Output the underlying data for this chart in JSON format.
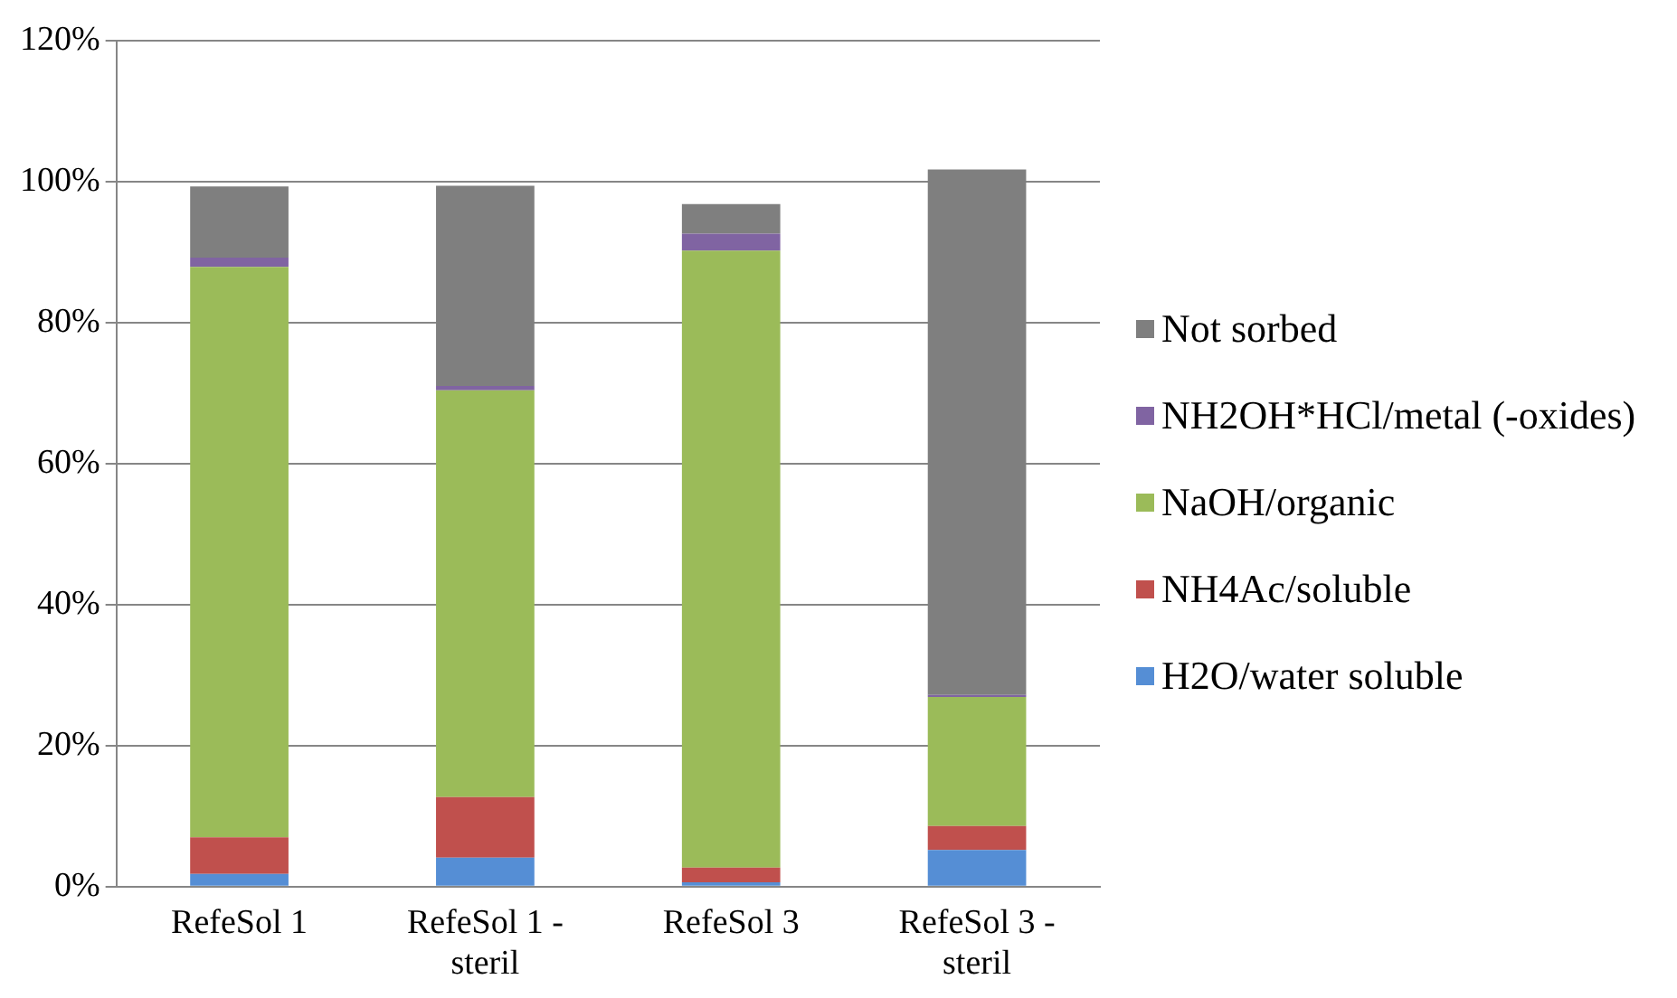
{
  "chart_data": {
    "type": "bar",
    "stacked": true,
    "categories": [
      "RefeSol 1",
      "RefeSol 1 - steril",
      "RefeSol 3",
      "RefeSol 3 - steril"
    ],
    "series": [
      {
        "name": "H2O/water soluble",
        "color": "#558ed5",
        "values": [
          1.8,
          4.1,
          0.6,
          5.2
        ]
      },
      {
        "name": "NH4Ac/soluble",
        "color": "#c0504d",
        "values": [
          5.2,
          8.6,
          2.1,
          3.4
        ]
      },
      {
        "name": "NaOH/organic",
        "color": "#9bbb59",
        "values": [
          80.9,
          57.7,
          87.5,
          18.3
        ]
      },
      {
        "name": "NH2OH*HCl/metal (-oxides)",
        "color": "#8064a2",
        "values": [
          1.3,
          0.6,
          2.4,
          0.3
        ]
      },
      {
        "name": "Not sorbed",
        "color": "#7f7f7f",
        "values": [
          10.1,
          28.4,
          4.2,
          74.5
        ]
      }
    ],
    "ylim": [
      0,
      120
    ],
    "yticks": [
      {
        "value": 0,
        "label": "0%"
      },
      {
        "value": 20,
        "label": "20%"
      },
      {
        "value": 40,
        "label": "40%"
      },
      {
        "value": 60,
        "label": "60%"
      },
      {
        "value": 80,
        "label": "80%"
      },
      {
        "value": 100,
        "label": "100%"
      },
      {
        "value": 120,
        "label": "120%"
      }
    ],
    "grid": "y",
    "legend": "right"
  }
}
